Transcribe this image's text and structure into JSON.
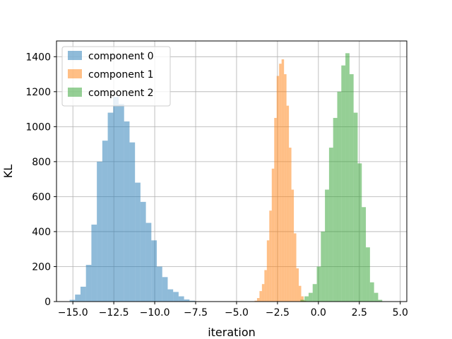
{
  "chart_data": {
    "type": "histogram",
    "xlabel": "iteration",
    "ylabel": "KL",
    "xlim": [
      -16.0,
      5.4
    ],
    "ylim": [
      0,
      1490
    ],
    "xticks": [
      -15.0,
      -12.5,
      -10.0,
      -7.5,
      -5.0,
      -2.5,
      0.0,
      2.5,
      5.0
    ],
    "xtick_labels": [
      "−15.0",
      "−12.5",
      "−10.0",
      "−7.5",
      "−5.0",
      "−2.5",
      "0.0",
      "2.5",
      "5.0"
    ],
    "yticks": [
      0,
      200,
      400,
      600,
      800,
      1000,
      1200,
      1400
    ],
    "ytick_labels": [
      "0",
      "200",
      "400",
      "600",
      "800",
      "1000",
      "1200",
      "1400"
    ],
    "grid": true,
    "legend_position": "top-left",
    "alpha": 0.5,
    "series": [
      {
        "name": "component 0",
        "color": "#1f77b4",
        "bin_start": -15.2,
        "bin_width": 0.333,
        "counts": [
          10,
          40,
          85,
          210,
          440,
          800,
          920,
          1080,
          1170,
          1130,
          1030,
          910,
          680,
          570,
          450,
          350,
          200,
          140,
          70,
          55,
          30,
          12,
          5
        ]
      },
      {
        "name": "component 1",
        "color": "#ff7f0e",
        "bin_start": -3.9,
        "bin_width": 0.15,
        "counts": [
          5,
          20,
          60,
          100,
          180,
          350,
          520,
          760,
          1050,
          1290,
          1360,
          1385,
          1300,
          1120,
          880,
          640,
          390,
          190,
          90,
          30,
          5
        ]
      },
      {
        "name": "component 2",
        "color": "#2ca02c",
        "bin_start": -1.1,
        "bin_width": 0.25,
        "counts": [
          10,
          30,
          50,
          100,
          200,
          400,
          640,
          880,
          1050,
          1200,
          1350,
          1420,
          1300,
          1080,
          790,
          540,
          310,
          110,
          50,
          10
        ]
      }
    ]
  }
}
